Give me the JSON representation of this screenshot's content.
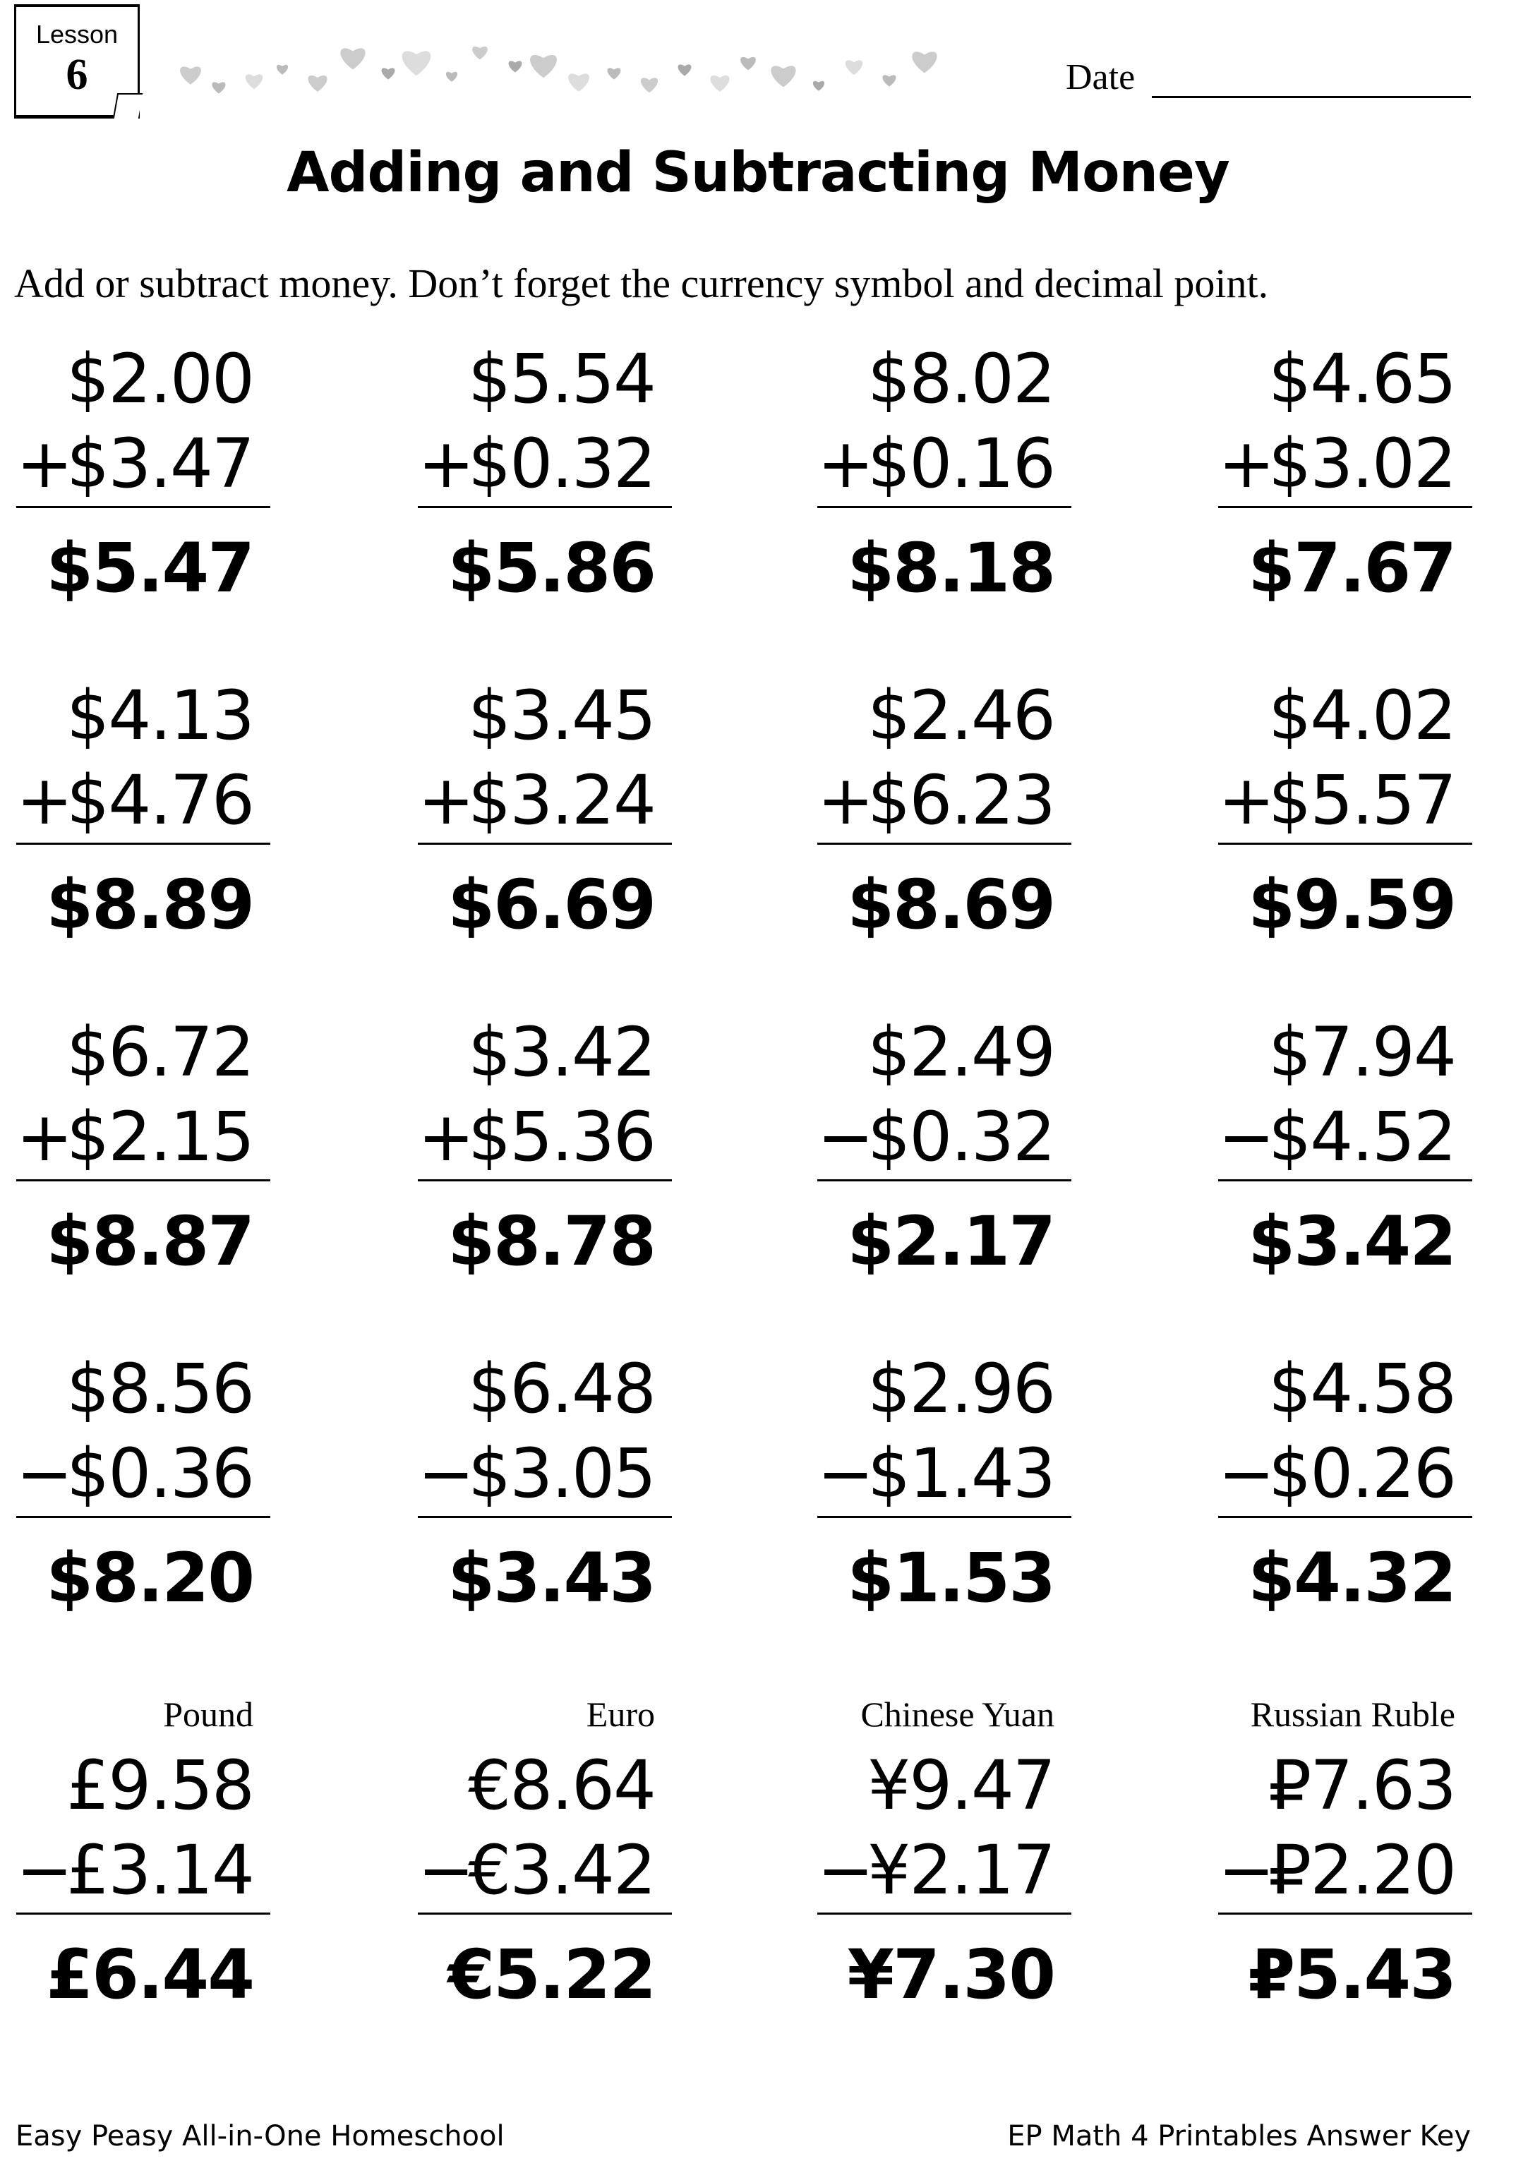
{
  "header": {
    "lesson_label": "Lesson",
    "lesson_number": "6",
    "date_label": "Date",
    "decoration": "hearts-border"
  },
  "title": "Adding and Subtracting Money",
  "instructions": "Add or subtract money. Don’t forget the currency symbol and decimal point.",
  "problems": [
    [
      {
        "top": "$2.00",
        "op": "+",
        "bottom": "$3.47",
        "answer": "$5.47"
      },
      {
        "top": "$5.54",
        "op": "+",
        "bottom": "$0.32",
        "answer": "$5.86"
      },
      {
        "top": "$8.02",
        "op": "+",
        "bottom": "$0.16",
        "answer": "$8.18"
      },
      {
        "top": "$4.65",
        "op": "+",
        "bottom": "$3.02",
        "answer": "$7.67"
      }
    ],
    [
      {
        "top": "$4.13",
        "op": "+",
        "bottom": "$4.76",
        "answer": "$8.89"
      },
      {
        "top": "$3.45",
        "op": "+",
        "bottom": "$3.24",
        "answer": "$6.69"
      },
      {
        "top": "$2.46",
        "op": "+",
        "bottom": "$6.23",
        "answer": "$8.69"
      },
      {
        "top": "$4.02",
        "op": "+",
        "bottom": "$5.57",
        "answer": "$9.59"
      }
    ],
    [
      {
        "top": "$6.72",
        "op": "+",
        "bottom": "$2.15",
        "answer": "$8.87"
      },
      {
        "top": "$3.42",
        "op": "+",
        "bottom": "$5.36",
        "answer": "$8.78"
      },
      {
        "top": "$2.49",
        "op": "−",
        "bottom": "$0.32",
        "answer": "$2.17"
      },
      {
        "top": "$7.94",
        "op": "−",
        "bottom": "$4.52",
        "answer": "$3.42"
      }
    ],
    [
      {
        "top": "$8.56",
        "op": "−",
        "bottom": "$0.36",
        "answer": "$8.20"
      },
      {
        "top": "$6.48",
        "op": "−",
        "bottom": "$3.05",
        "answer": "$3.43"
      },
      {
        "top": "$2.96",
        "op": "−",
        "bottom": "$1.43",
        "answer": "$1.53"
      },
      {
        "top": "$4.58",
        "op": "−",
        "bottom": "$0.26",
        "answer": "$4.32"
      }
    ],
    [
      {
        "label": "Pound",
        "top": "£9.58",
        "op": "−",
        "bottom": "£3.14",
        "answer": "£6.44"
      },
      {
        "label": "Euro",
        "top": "€8.64",
        "op": "−",
        "bottom": "€3.42",
        "answer": "€5.22"
      },
      {
        "label": "Chinese Yuan",
        "top": "¥9.47",
        "op": "−",
        "bottom": "¥2.17",
        "answer": "¥7.30"
      },
      {
        "label": "Russian Ruble",
        "top": "₽7.63",
        "op": "−",
        "bottom": "₽2.20",
        "answer": "₽5.43"
      }
    ]
  ],
  "footer": {
    "left": "Easy Peasy All-in-One Homeschool",
    "right": "EP Math 4 Printables Answer Key"
  }
}
